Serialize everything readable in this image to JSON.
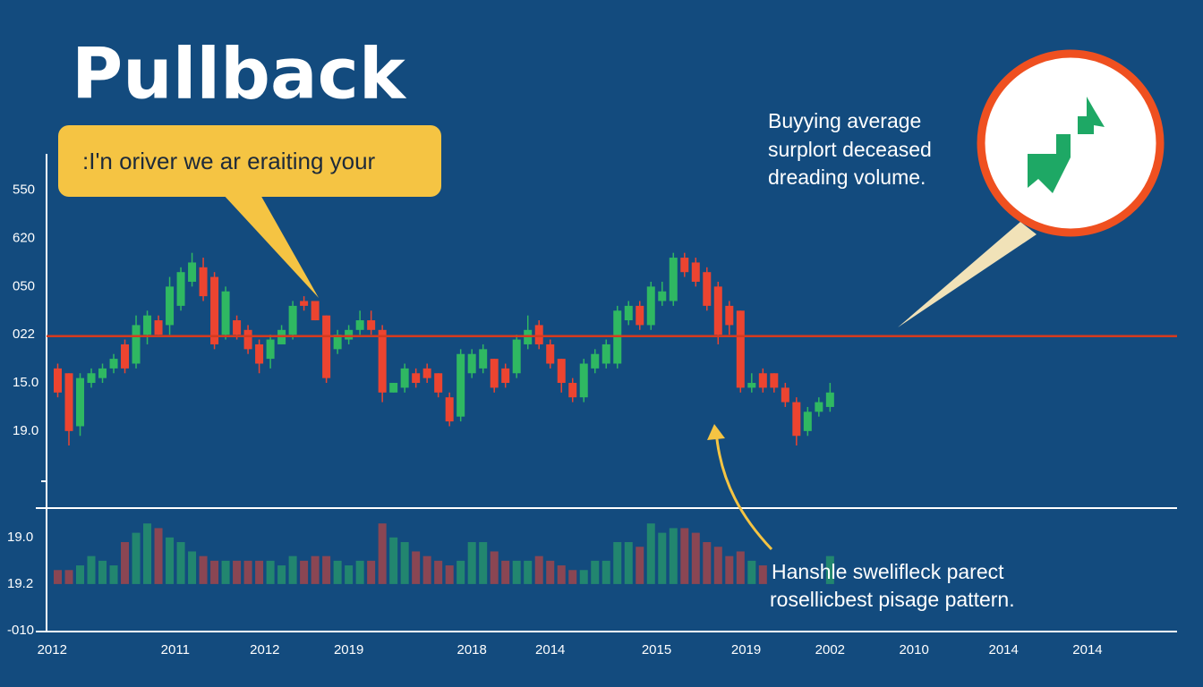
{
  "chart_data": {
    "type": "candlestick",
    "title": "Pullback",
    "callout": ":I'n oriver we ar eraiting your",
    "note_top": [
      "Buyying average",
      "surplort deceased",
      "dreading volume."
    ],
    "note_bottom": [
      "Hanshle swelifleck parect",
      "rosellicbest pisage pattern."
    ],
    "x": [
      0,
      1,
      2,
      3,
      4,
      5,
      6,
      7,
      8,
      9,
      10,
      11,
      12,
      13,
      14,
      15,
      16,
      17,
      18,
      19,
      20,
      21,
      22,
      23,
      24,
      25,
      26,
      27,
      28,
      29,
      30,
      31,
      32,
      33,
      34,
      35,
      36,
      37,
      38,
      39,
      40,
      41,
      42,
      43,
      44,
      45,
      46,
      47,
      48,
      49,
      50,
      51,
      52,
      53,
      54,
      55,
      56,
      57,
      58,
      59,
      60,
      61,
      62,
      63,
      64,
      65,
      66,
      67,
      68,
      69
    ],
    "open": [
      2.3,
      2.2,
      1.1,
      2.0,
      2.1,
      2.3,
      2.8,
      2.4,
      3.0,
      3.3,
      3.2,
      3.6,
      4.1,
      4.4,
      4.2,
      3.0,
      3.3,
      3.1,
      2.8,
      2.5,
      2.8,
      3.0,
      3.7,
      3.7,
      3.4,
      2.7,
      2.9,
      3.1,
      3.3,
      3.1,
      1.8,
      1.9,
      2.2,
      2.3,
      2.2,
      1.7,
      1.3,
      2.2,
      2.3,
      2.5,
      2.3,
      2.2,
      2.8,
      3.2,
      2.8,
      2.5,
      2.0,
      1.7,
      2.3,
      2.4,
      2.4,
      3.3,
      3.6,
      3.2,
      3.7,
      3.7,
      4.6,
      4.5,
      4.3,
      4.0,
      3.6,
      3.5,
      1.9,
      2.2,
      2.2,
      1.9,
      1.6,
      1.0,
      1.4,
      1.5
    ],
    "high": [
      2.4,
      2.2,
      2.2,
      2.3,
      2.4,
      2.6,
      2.9,
      3.4,
      3.5,
      3.4,
      4.2,
      4.4,
      4.7,
      4.6,
      4.3,
      4.0,
      3.4,
      3.2,
      2.9,
      3.0,
      3.2,
      3.7,
      3.8,
      3.7,
      3.4,
      3.1,
      3.2,
      3.5,
      3.5,
      3.2,
      2.0,
      2.4,
      2.3,
      2.4,
      2.2,
      1.8,
      2.7,
      2.7,
      2.8,
      2.5,
      2.4,
      3.0,
      3.4,
      3.3,
      2.9,
      2.5,
      2.1,
      2.5,
      2.7,
      2.9,
      3.6,
      3.7,
      3.7,
      4.1,
      4.1,
      4.7,
      4.7,
      4.6,
      4.4,
      4.1,
      3.7,
      3.5,
      2.2,
      2.3,
      2.2,
      2.0,
      1.7,
      1.5,
      1.7,
      2.0
    ],
    "low": [
      1.7,
      0.7,
      0.9,
      1.9,
      2.0,
      2.2,
      2.2,
      2.3,
      2.8,
      3.0,
      3.0,
      3.5,
      4.0,
      3.7,
      2.7,
      2.9,
      2.9,
      2.6,
      2.2,
      2.3,
      2.8,
      2.9,
      3.5,
      3.3,
      2.0,
      2.6,
      2.8,
      3.0,
      3.0,
      1.6,
      1.8,
      1.8,
      1.9,
      2.0,
      1.7,
      1.1,
      1.2,
      2.1,
      2.2,
      1.8,
      1.9,
      2.1,
      2.7,
      2.7,
      2.3,
      1.8,
      1.6,
      1.6,
      2.2,
      2.3,
      2.3,
      3.2,
      3.1,
      3.1,
      3.6,
      3.6,
      4.2,
      4.0,
      3.5,
      2.8,
      3.0,
      1.8,
      1.8,
      1.8,
      1.8,
      1.5,
      0.7,
      0.9,
      1.3,
      1.4
    ],
    "close": [
      1.8,
      1.0,
      2.1,
      2.2,
      2.3,
      2.5,
      2.3,
      3.2,
      3.4,
      3.0,
      4.0,
      4.3,
      4.5,
      3.8,
      2.8,
      3.9,
      3.0,
      2.7,
      2.4,
      2.9,
      3.1,
      3.6,
      3.6,
      3.3,
      2.1,
      3.0,
      3.1,
      3.3,
      3.1,
      1.8,
      2.0,
      2.3,
      2.0,
      2.1,
      1.8,
      1.2,
      2.6,
      2.6,
      2.7,
      1.9,
      2.0,
      2.9,
      3.1,
      2.8,
      2.4,
      2.0,
      1.7,
      2.4,
      2.6,
      2.8,
      3.5,
      3.6,
      3.2,
      4.0,
      3.9,
      4.6,
      4.3,
      4.1,
      3.6,
      3.0,
      3.2,
      1.9,
      2.0,
      1.9,
      1.9,
      1.6,
      0.9,
      1.4,
      1.6,
      1.8
    ],
    "up_color": "#2fb862",
    "down_color": "#ec4430",
    "xlim": [
      -1,
      100
    ],
    "xticks": [
      {
        "value": -0.5,
        "label": "2012"
      },
      {
        "value": 10.5,
        "label": "2011"
      },
      {
        "value": 18.5,
        "label": "2012"
      },
      {
        "value": 26,
        "label": "2019"
      },
      {
        "value": 37,
        "label": "2018"
      },
      {
        "value": 44,
        "label": "2014"
      },
      {
        "value": 53.5,
        "label": "2015"
      },
      {
        "value": 61.5,
        "label": "2019"
      },
      {
        "value": 69,
        "label": "2002"
      },
      {
        "value": 76.5,
        "label": "2010"
      },
      {
        "value": 84.5,
        "label": "2014"
      },
      {
        "value": 92,
        "label": "2014"
      }
    ],
    "ylim": [
      -0.6,
      6.7
    ],
    "yticks": [
      {
        "value": 6,
        "label": "550"
      },
      {
        "value": 5,
        "label": "620"
      },
      {
        "value": 4,
        "label": "050"
      },
      {
        "value": 3,
        "label": "022"
      },
      {
        "value": 2,
        "label": "15.0"
      },
      {
        "value": 1,
        "label": "19.0"
      }
    ],
    "reference_line": 2.97,
    "reference_color": "#d63a1e",
    "volume": {
      "values": [
        0.3,
        0.3,
        0.4,
        0.6,
        0.5,
        0.4,
        0.9,
        1.1,
        1.3,
        1.2,
        1.0,
        0.9,
        0.7,
        0.6,
        0.5,
        0.5,
        0.5,
        0.5,
        0.5,
        0.5,
        0.4,
        0.6,
        0.5,
        0.6,
        0.6,
        0.5,
        0.4,
        0.5,
        0.5,
        1.3,
        1.0,
        0.9,
        0.7,
        0.6,
        0.5,
        0.4,
        0.5,
        0.9,
        0.9,
        0.7,
        0.5,
        0.5,
        0.5,
        0.6,
        0.5,
        0.4,
        0.3,
        0.3,
        0.5,
        0.5,
        0.9,
        0.9,
        0.8,
        1.3,
        1.1,
        1.2,
        1.2,
        1.1,
        0.9,
        0.8,
        0.6,
        0.7,
        0.5,
        0.4,
        null,
        null,
        null,
        null,
        null,
        0.6
      ],
      "ylim": [
        -1,
        1.63
      ],
      "yticks": [
        {
          "value": 1,
          "label": "19.0"
        },
        {
          "value": 0,
          "label": "19.2"
        },
        {
          "value": -1,
          "label": "-010"
        }
      ]
    }
  }
}
